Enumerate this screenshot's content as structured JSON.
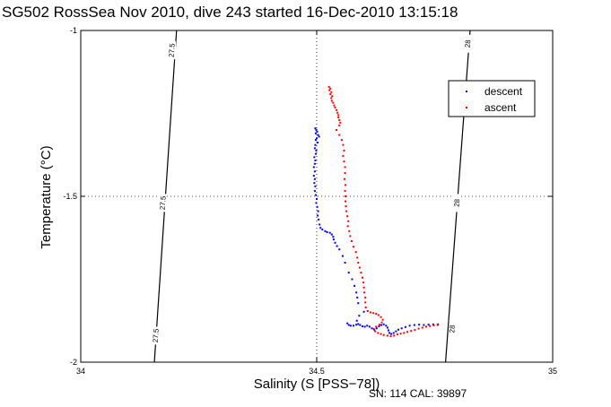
{
  "chart_data": {
    "type": "scatter",
    "title": "SG502 RossSea Nov 2010, dive 243 started 16-Dec-2010 13:15:18",
    "xlabel": "Salinity (S [PSS−78])",
    "ylabel": "Temperature (°C)",
    "xlim": [
      34,
      35
    ],
    "ylim": [
      -2,
      -1
    ],
    "x_ticks": [
      "34",
      "34.5",
      "35"
    ],
    "y_ticks": [
      "-1",
      "-1.5",
      "-2"
    ],
    "grid": "dotted-at-major-ticks",
    "legend_position": "top-right",
    "footer": "SN: 114  CAL: 39897",
    "contours": [
      {
        "label": "27.5",
        "points": [
          [
            34.203,
            -1.0
          ],
          [
            34.156,
            -2.0
          ]
        ],
        "label_positions": [
          [
            34.194,
            -1.06
          ],
          [
            34.175,
            -1.52
          ],
          [
            34.16,
            -1.92
          ]
        ]
      },
      {
        "label": "28",
        "points": [
          [
            34.825,
            -1.0
          ],
          [
            34.773,
            -2.0
          ]
        ],
        "label_positions": [
          [
            34.821,
            -1.04
          ],
          [
            34.798,
            -1.52
          ],
          [
            34.788,
            -1.9
          ]
        ]
      }
    ],
    "series": [
      {
        "name": "descent",
        "color": "#0000ff",
        "points": [
          [
            34.497,
            -1.295
          ],
          [
            34.499,
            -1.3
          ],
          [
            34.501,
            -1.305
          ],
          [
            34.498,
            -1.31
          ],
          [
            34.503,
            -1.315
          ],
          [
            34.505,
            -1.32
          ],
          [
            34.5,
            -1.325
          ],
          [
            34.498,
            -1.33
          ],
          [
            34.502,
            -1.338
          ],
          [
            34.497,
            -1.345
          ],
          [
            34.496,
            -1.355
          ],
          [
            34.499,
            -1.362
          ],
          [
            34.498,
            -1.372
          ],
          [
            34.495,
            -1.382
          ],
          [
            34.497,
            -1.392
          ],
          [
            34.496,
            -1.402
          ],
          [
            34.494,
            -1.412
          ],
          [
            34.496,
            -1.425
          ],
          [
            34.494,
            -1.438
          ],
          [
            34.496,
            -1.448
          ],
          [
            34.495,
            -1.46
          ],
          [
            34.497,
            -1.47
          ],
          [
            34.496,
            -1.484
          ],
          [
            34.498,
            -1.496
          ],
          [
            34.5,
            -1.508
          ],
          [
            34.499,
            -1.52
          ],
          [
            34.501,
            -1.532
          ],
          [
            34.503,
            -1.545
          ],
          [
            34.502,
            -1.558
          ],
          [
            34.504,
            -1.57
          ],
          [
            34.506,
            -1.585
          ],
          [
            34.508,
            -1.595
          ],
          [
            34.512,
            -1.6
          ],
          [
            34.518,
            -1.605
          ],
          [
            34.522,
            -1.608
          ],
          [
            34.528,
            -1.61
          ],
          [
            34.532,
            -1.615
          ],
          [
            34.535,
            -1.622
          ],
          [
            34.536,
            -1.63
          ],
          [
            34.539,
            -1.64
          ],
          [
            34.543,
            -1.65
          ],
          [
            34.548,
            -1.66
          ],
          [
            34.555,
            -1.68
          ],
          [
            34.56,
            -1.7
          ],
          [
            34.568,
            -1.73
          ],
          [
            34.575,
            -1.75
          ],
          [
            34.58,
            -1.77
          ],
          [
            34.584,
            -1.79
          ],
          [
            34.586,
            -1.805
          ],
          [
            34.588,
            -1.822
          ],
          [
            34.6,
            -1.848
          ],
          [
            34.59,
            -1.86
          ],
          [
            34.585,
            -1.875
          ],
          [
            34.565,
            -1.883
          ],
          [
            34.568,
            -1.888
          ],
          [
            34.572,
            -1.89
          ],
          [
            34.578,
            -1.89
          ],
          [
            34.584,
            -1.887
          ],
          [
            34.588,
            -1.885
          ],
          [
            34.592,
            -1.888
          ],
          [
            34.597,
            -1.892
          ],
          [
            34.602,
            -1.893
          ],
          [
            34.607,
            -1.89
          ],
          [
            34.612,
            -1.893
          ],
          [
            34.617,
            -1.898
          ],
          [
            34.622,
            -1.902
          ],
          [
            34.627,
            -1.898
          ],
          [
            34.632,
            -1.892
          ],
          [
            34.637,
            -1.888
          ],
          [
            34.642,
            -1.886
          ],
          [
            34.647,
            -1.89
          ],
          [
            34.65,
            -1.896
          ],
          [
            34.652,
            -1.904
          ],
          [
            34.654,
            -1.912
          ],
          [
            34.658,
            -1.915
          ],
          [
            34.663,
            -1.912
          ],
          [
            34.668,
            -1.907
          ],
          [
            34.673,
            -1.902
          ],
          [
            34.68,
            -1.898
          ],
          [
            34.688,
            -1.894
          ],
          [
            34.697,
            -1.89
          ],
          [
            34.707,
            -1.888
          ],
          [
            34.717,
            -1.887
          ],
          [
            34.727,
            -1.888
          ],
          [
            34.737,
            -1.887
          ],
          [
            34.747,
            -1.886
          ],
          [
            34.757,
            -1.886
          ]
        ]
      },
      {
        "name": "ascent",
        "color": "#ff0000",
        "points": [
          [
            34.526,
            -1.17
          ],
          [
            34.529,
            -1.175
          ],
          [
            34.527,
            -1.18
          ],
          [
            34.531,
            -1.186
          ],
          [
            34.529,
            -1.192
          ],
          [
            34.533,
            -1.198
          ],
          [
            34.531,
            -1.204
          ],
          [
            34.532,
            -1.212
          ],
          [
            34.535,
            -1.218
          ],
          [
            34.537,
            -1.226
          ],
          [
            34.539,
            -1.232
          ],
          [
            34.542,
            -1.24
          ],
          [
            34.544,
            -1.248
          ],
          [
            34.546,
            -1.255
          ],
          [
            34.546,
            -1.262
          ],
          [
            34.548,
            -1.27
          ],
          [
            34.55,
            -1.278
          ],
          [
            34.548,
            -1.286
          ],
          [
            34.542,
            -1.3
          ],
          [
            34.548,
            -1.315
          ],
          [
            34.553,
            -1.33
          ],
          [
            34.556,
            -1.345
          ],
          [
            34.558,
            -1.362
          ],
          [
            34.556,
            -1.378
          ],
          [
            34.558,
            -1.395
          ],
          [
            34.56,
            -1.412
          ],
          [
            34.56,
            -1.43
          ],
          [
            34.559,
            -1.448
          ],
          [
            34.561,
            -1.466
          ],
          [
            34.56,
            -1.484
          ],
          [
            34.561,
            -1.5
          ],
          [
            34.561,
            -1.515
          ],
          [
            34.562,
            -1.53
          ],
          [
            34.563,
            -1.545
          ],
          [
            34.565,
            -1.56
          ],
          [
            34.567,
            -1.575
          ],
          [
            34.566,
            -1.59
          ],
          [
            34.569,
            -1.605
          ],
          [
            34.571,
            -1.62
          ],
          [
            34.574,
            -1.635
          ],
          [
            34.578,
            -1.652
          ],
          [
            34.583,
            -1.668
          ],
          [
            34.586,
            -1.685
          ],
          [
            34.588,
            -1.7
          ],
          [
            34.591,
            -1.715
          ],
          [
            34.594,
            -1.73
          ],
          [
            34.597,
            -1.745
          ],
          [
            34.599,
            -1.76
          ],
          [
            34.6,
            -1.775
          ],
          [
            34.601,
            -1.79
          ],
          [
            34.603,
            -1.805
          ],
          [
            34.603,
            -1.82
          ],
          [
            34.604,
            -1.835
          ],
          [
            34.608,
            -1.846
          ],
          [
            34.614,
            -1.85
          ],
          [
            34.62,
            -1.852
          ],
          [
            34.626,
            -1.854
          ],
          [
            34.631,
            -1.858
          ],
          [
            34.636,
            -1.864
          ],
          [
            34.64,
            -1.872
          ],
          [
            34.638,
            -1.88
          ],
          [
            34.633,
            -1.887
          ],
          [
            34.626,
            -1.893
          ],
          [
            34.621,
            -1.9
          ],
          [
            34.624,
            -1.907
          ],
          [
            34.63,
            -1.912
          ],
          [
            34.636,
            -1.915
          ],
          [
            34.642,
            -1.918
          ],
          [
            34.65,
            -1.92
          ],
          [
            34.657,
            -1.922
          ],
          [
            34.664,
            -1.92
          ],
          [
            34.671,
            -1.916
          ],
          [
            34.678,
            -1.914
          ],
          [
            34.685,
            -1.912
          ],
          [
            34.692,
            -1.909
          ],
          [
            34.7,
            -1.906
          ],
          [
            34.708,
            -1.903
          ],
          [
            34.716,
            -1.899
          ],
          [
            34.724,
            -1.896
          ],
          [
            34.732,
            -1.893
          ],
          [
            34.74,
            -1.891
          ],
          [
            34.748,
            -1.889
          ],
          [
            34.756,
            -1.888
          ]
        ]
      }
    ]
  }
}
